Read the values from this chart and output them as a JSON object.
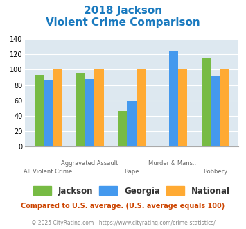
{
  "title_line1": "2018 Jackson",
  "title_line2": "Violent Crime Comparison",
  "title_color": "#1a7abf",
  "categories": [
    "All Violent Crime",
    "Aggravated Assault",
    "Rape",
    "Murder & Mans...",
    "Robbery"
  ],
  "cat_labels_row1": [
    "",
    "Aggravated Assault",
    "",
    "Murder & Mans...",
    ""
  ],
  "cat_labels_row2": [
    "All Violent Crime",
    "",
    "Rape",
    "",
    "Robbery"
  ],
  "jackson": [
    93,
    96,
    46,
    0,
    115
  ],
  "georgia": [
    86,
    88,
    60,
    124,
    92
  ],
  "national": [
    100,
    100,
    100,
    100,
    100
  ],
  "jackson_color": "#77bb44",
  "georgia_color": "#4499ee",
  "national_color": "#ffaa33",
  "ylim": [
    0,
    140
  ],
  "yticks": [
    0,
    20,
    40,
    60,
    80,
    100,
    120,
    140
  ],
  "bg_color": "#dde8f0",
  "legend_labels": [
    "Jackson",
    "Georgia",
    "National"
  ],
  "footnote1": "Compared to U.S. average. (U.S. average equals 100)",
  "footnote2": "© 2025 CityRating.com - https://www.cityrating.com/crime-statistics/",
  "footnote1_color": "#cc4400",
  "footnote2_color": "#888888"
}
